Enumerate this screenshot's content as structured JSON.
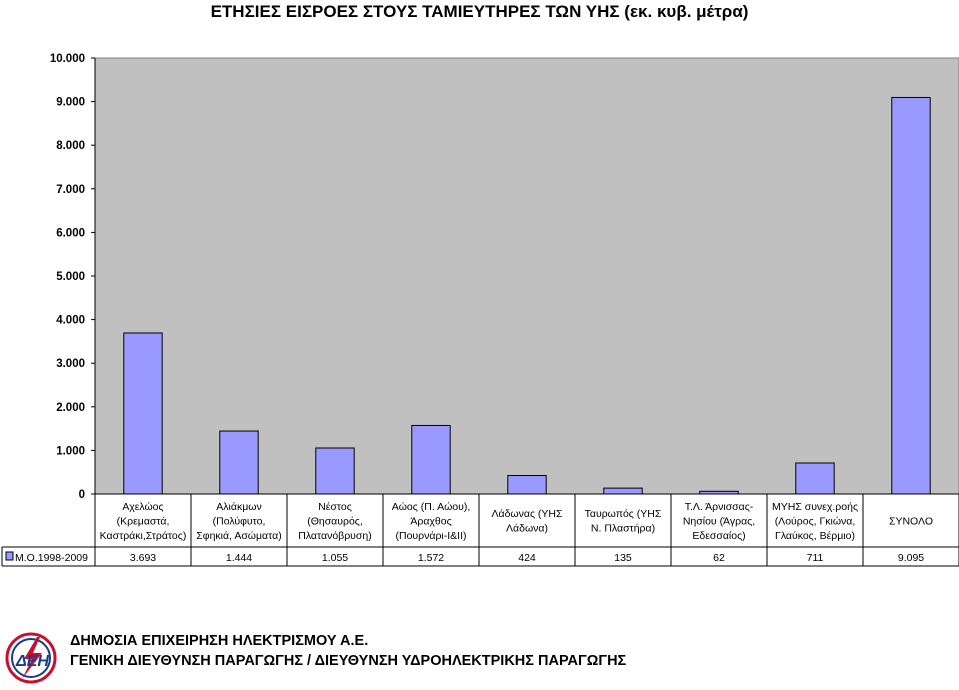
{
  "chart_data": {
    "type": "bar",
    "title": "ΕΤΗΣΙΕΣ ΕΙΣΡΟΕΣ ΣΤΟΥΣ ΤΑΜΙΕΥΤΗΡΕΣ ΤΩΝ ΥΗΣ (εκ. κυβ. μέτρα)",
    "categories": [
      [
        "Αχελώος",
        "(Κρεμαστά,",
        "Καστράκι,Στράτος)"
      ],
      [
        "Αλιάκμων",
        "(Πολύφυτο,",
        "Σφηκιά, Ασώματα)"
      ],
      [
        "Νέστος",
        "(Θησαυρός,",
        "Πλατανόβρυση)"
      ],
      [
        "Αώος (Π. Αώου),",
        "Άραχθος",
        "(Πουρνάρι-Ι&ΙΙ)"
      ],
      [
        "Λάδωνας (ΥΗΣ",
        "Λάδωνα)"
      ],
      [
        "Ταυρωπός (ΥΗΣ",
        "Ν. Πλαστήρα)"
      ],
      [
        "Τ.Λ. Άρνισσας-",
        "Νησίου (Άγρας,",
        "Εδεσσαίος)"
      ],
      [
        "ΜΥΗΣ συνεχ.ροής",
        "(Λούρος, Γκιώνα,",
        "Γλαύκος, Βέρμιο)"
      ],
      [
        "ΣΥΝΟΛΟ"
      ]
    ],
    "series": [
      {
        "name": "Μ.Ο.1998-2009",
        "values": [
          3693,
          1444,
          1055,
          1572,
          424,
          135,
          62,
          711,
          9095
        ],
        "labels": [
          "3.693",
          "1.444",
          "1.055",
          "1.572",
          "424",
          "135",
          "62",
          "711",
          "9.095"
        ],
        "color": "#9999ff"
      }
    ],
    "ylim": [
      0,
      10000
    ],
    "yticks": [
      0,
      1000,
      2000,
      3000,
      4000,
      5000,
      6000,
      7000,
      8000,
      9000,
      10000
    ],
    "ytick_labels": [
      "0",
      "1.000",
      "2.000",
      "3.000",
      "4.000",
      "5.000",
      "6.000",
      "7.000",
      "8.000",
      "9.000",
      "10.000"
    ],
    "grid": false,
    "legend": "data-table",
    "plot_background": "#c0c0c0"
  },
  "footer": {
    "org_line1": "ΔΗΜΟΣΙΑ ΕΠΙΧΕΙΡΗΣΗ ΗΛΕΚΤΡΙΣΜΟΥ Α.Ε.",
    "org_line2": "ΓΕΝΙΚΗ ΔΙΕΥΘΥΝΣΗ ΠΑΡΑΓΩΓΗΣ / ΔΙΕΥΘΥΝΣΗ ΥΔΡΟΗΛΕΚΤΡΙΚΗΣ ΠΑΡΑΓΩΓΗΣ",
    "logo_text": "ΔΕΗ"
  }
}
